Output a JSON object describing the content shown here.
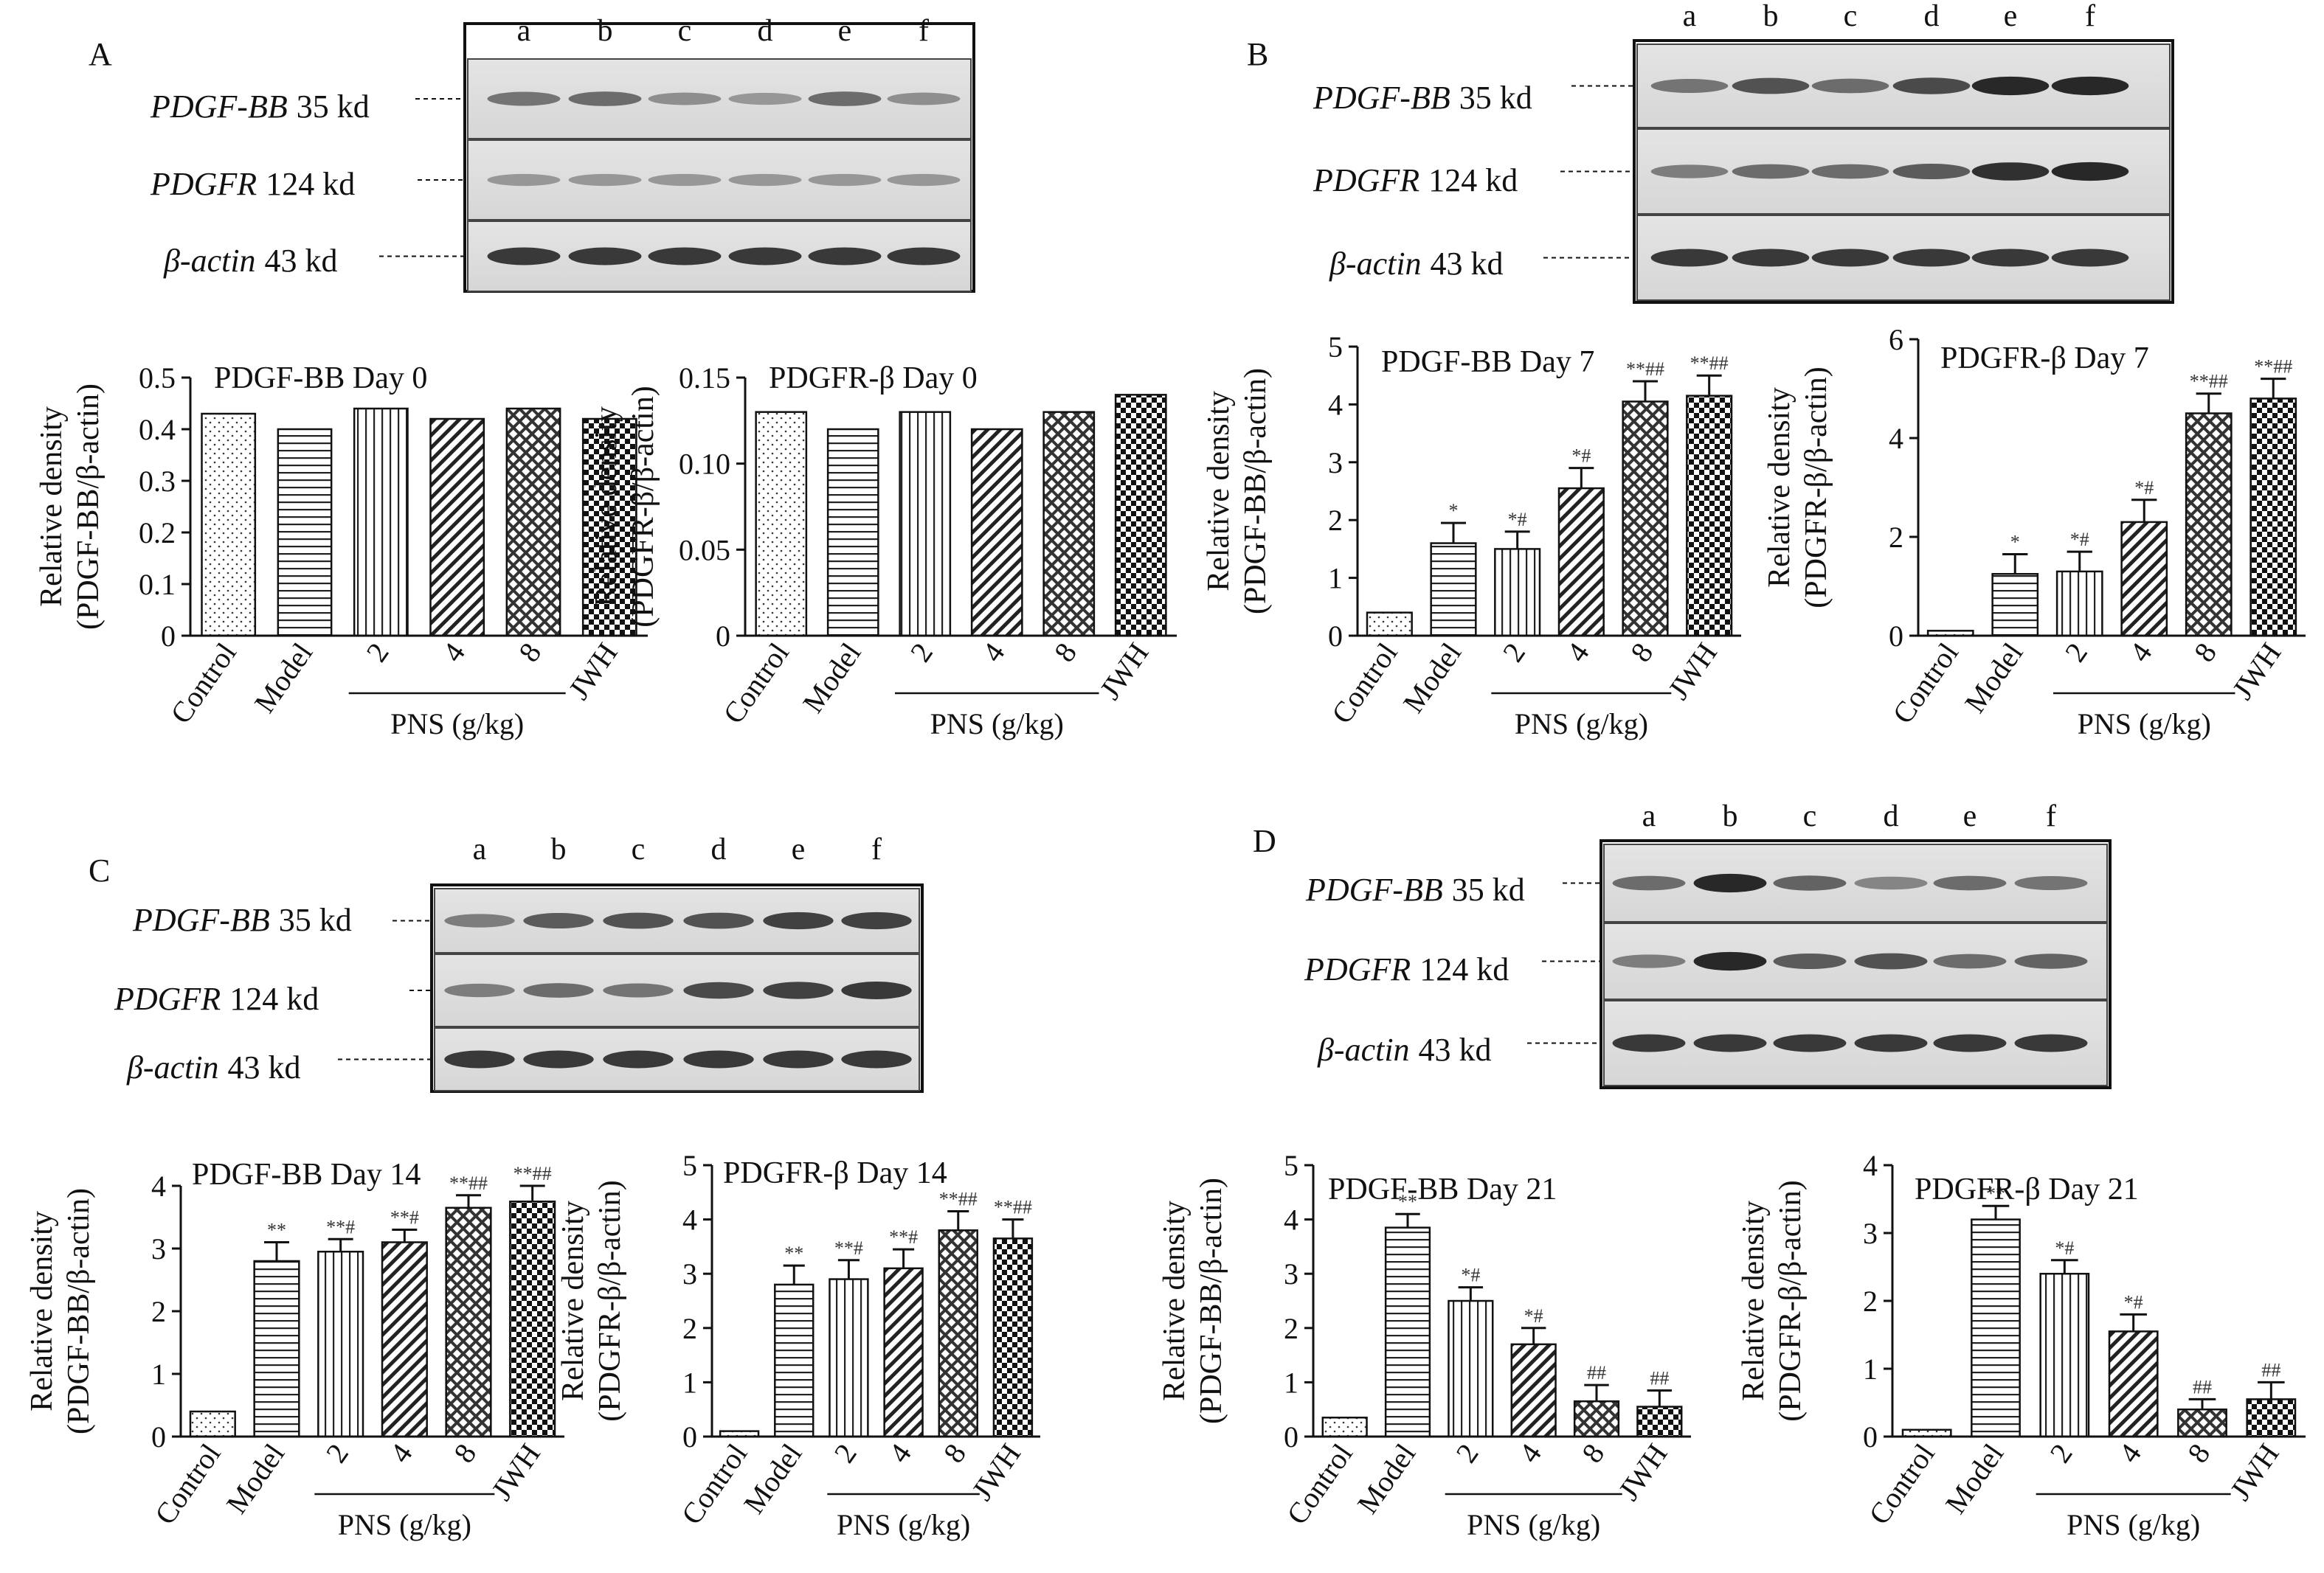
{
  "panels": [
    {
      "letter": "A",
      "lanes": [
        "a",
        "b",
        "c",
        "d",
        "e",
        "f"
      ],
      "blots": [
        {
          "name": "PDGF-BB",
          "size": "35 kd",
          "intensity": [
            0.5,
            0.55,
            0.35,
            0.3,
            0.55,
            0.35
          ]
        },
        {
          "name": "PDGFR",
          "size": "124 kd",
          "intensity": [
            0.3,
            0.3,
            0.3,
            0.3,
            0.3,
            0.3
          ]
        },
        {
          "name": "β-actin",
          "size": "43 kd",
          "intensity": [
            0.85,
            0.85,
            0.85,
            0.85,
            0.85,
            0.85
          ]
        }
      ]
    },
    {
      "letter": "B",
      "lanes": [
        "a",
        "b",
        "c",
        "d",
        "e",
        "f"
      ],
      "blots": [
        {
          "name": "PDGF-BB",
          "size": "35 kd",
          "intensity": [
            0.5,
            0.7,
            0.55,
            0.75,
            0.95,
            0.95
          ]
        },
        {
          "name": "PDGFR",
          "size": "124 kd",
          "intensity": [
            0.45,
            0.55,
            0.55,
            0.65,
            0.9,
            0.95
          ]
        },
        {
          "name": "β-actin",
          "size": "43 kd",
          "intensity": [
            0.85,
            0.85,
            0.85,
            0.85,
            0.85,
            0.85
          ]
        }
      ]
    },
    {
      "letter": "C",
      "lanes": [
        "a",
        "b",
        "c",
        "d",
        "e",
        "f"
      ],
      "blots": [
        {
          "name": "PDGF-BB",
          "size": "35 kd",
          "intensity": [
            0.45,
            0.65,
            0.7,
            0.7,
            0.8,
            0.8
          ]
        },
        {
          "name": "PDGFR",
          "size": "124 kd",
          "intensity": [
            0.45,
            0.55,
            0.5,
            0.75,
            0.8,
            0.85
          ]
        },
        {
          "name": "β-actin",
          "size": "43 kd",
          "intensity": [
            0.85,
            0.85,
            0.85,
            0.85,
            0.85,
            0.85
          ]
        }
      ]
    },
    {
      "letter": "D",
      "lanes": [
        "a",
        "b",
        "c",
        "d",
        "e",
        "f"
      ],
      "blots": [
        {
          "name": "PDGF-BB",
          "size": "35 kd",
          "intensity": [
            0.55,
            0.95,
            0.6,
            0.4,
            0.55,
            0.5
          ]
        },
        {
          "name": "PDGFR",
          "size": "124 kd",
          "intensity": [
            0.45,
            0.95,
            0.65,
            0.7,
            0.55,
            0.6
          ]
        },
        {
          "name": "β-actin",
          "size": "43 kd",
          "intensity": [
            0.85,
            0.85,
            0.85,
            0.85,
            0.85,
            0.85
          ]
        }
      ]
    }
  ],
  "chart_data": [
    {
      "type": "bar",
      "title": "PDGF-BB Day 0",
      "ylabel": [
        "Relative density",
        "(PDGF-BB/β-actin)"
      ],
      "categories": [
        "Control",
        "Model",
        "2",
        "4",
        "8",
        "JWH"
      ],
      "group_label": "PNS (g/kg)",
      "values": [
        0.43,
        0.4,
        0.44,
        0.42,
        0.44,
        0.42
      ],
      "errors": [
        0,
        0,
        0,
        0,
        0,
        0
      ],
      "sig": [
        "",
        "",
        "",
        "",
        "",
        ""
      ],
      "ylim": [
        0,
        0.5
      ],
      "yticks": [
        0,
        0.1,
        0.2,
        0.3,
        0.4,
        0.5
      ],
      "yticklabels": [
        "0",
        "0.1",
        "0.2",
        "0.3",
        "0.4",
        "0.5"
      ]
    },
    {
      "type": "bar",
      "title": "PDGFR-β Day 0",
      "ylabel": [
        "Relative density",
        "(PDGFR-β/β-actin)"
      ],
      "categories": [
        "Control",
        "Model",
        "2",
        "4",
        "8",
        "JWH"
      ],
      "group_label": "PNS (g/kg)",
      "values": [
        0.13,
        0.12,
        0.13,
        0.12,
        0.13,
        0.14
      ],
      "errors": [
        0,
        0,
        0,
        0,
        0,
        0
      ],
      "sig": [
        "",
        "",
        "",
        "",
        "",
        ""
      ],
      "ylim": [
        0,
        0.15
      ],
      "yticks": [
        0,
        0.05,
        0.1,
        0.15
      ],
      "yticklabels": [
        "0",
        "0.05",
        "0.10",
        "0.15"
      ]
    },
    {
      "type": "bar",
      "title": "PDGF-BB Day 7",
      "ylabel": [
        "Relative density",
        "(PDGF-BB/β-actin)"
      ],
      "categories": [
        "Control",
        "Model",
        "2",
        "4",
        "8",
        "JWH"
      ],
      "group_label": "PNS (g/kg)",
      "values": [
        0.4,
        1.6,
        1.5,
        2.55,
        4.05,
        4.15
      ],
      "errors": [
        0,
        0.35,
        0.3,
        0.35,
        0.35,
        0.35
      ],
      "sig": [
        "",
        "*",
        "*#",
        "*#",
        "**##",
        "**##"
      ],
      "ylim": [
        0,
        5
      ],
      "yticks": [
        0,
        1,
        2,
        3,
        4,
        5
      ],
      "yticklabels": [
        "0",
        "1",
        "2",
        "3",
        "4",
        "5"
      ]
    },
    {
      "type": "bar",
      "title": "PDGFR-β Day 7",
      "ylabel": [
        "Relative density",
        "(PDGFR-β/β-actin)"
      ],
      "categories": [
        "Control",
        "Model",
        "2",
        "4",
        "8",
        "JWH"
      ],
      "group_label": "PNS (g/kg)",
      "values": [
        0.1,
        1.25,
        1.3,
        2.3,
        4.5,
        4.8
      ],
      "errors": [
        0,
        0.4,
        0.4,
        0.45,
        0.4,
        0.4
      ],
      "sig": [
        "",
        "*",
        "*#",
        "*#",
        "**##",
        "**##"
      ],
      "ylim": [
        0,
        6
      ],
      "yticks": [
        0,
        2,
        4,
        6
      ],
      "yticklabels": [
        "0",
        "2",
        "4",
        "6"
      ]
    },
    {
      "type": "bar",
      "title": "PDGF-BB Day 14",
      "ylabel": [
        "Relative density",
        "(PDGF-BB/β-actin)"
      ],
      "categories": [
        "Control",
        "Model",
        "2",
        "4",
        "8",
        "JWH"
      ],
      "group_label": "PNS (g/kg)",
      "values": [
        0.4,
        2.8,
        2.95,
        3.1,
        3.65,
        3.75
      ],
      "errors": [
        0,
        0.3,
        0.2,
        0.2,
        0.2,
        0.25
      ],
      "sig": [
        "",
        "**",
        "**#",
        "**#",
        "**##",
        "**##"
      ],
      "ylim": [
        0,
        4
      ],
      "yticks": [
        0,
        1,
        2,
        3,
        4
      ],
      "yticklabels": [
        "0",
        "1",
        "2",
        "3",
        "4"
      ]
    },
    {
      "type": "bar",
      "title": "PDGFR-β Day 14",
      "ylabel": [
        "Relative density",
        "(PDGFR-β/β-actin)"
      ],
      "categories": [
        "Control",
        "Model",
        "2",
        "4",
        "8",
        "JWH"
      ],
      "group_label": "PNS (g/kg)",
      "values": [
        0.1,
        2.8,
        2.9,
        3.1,
        3.8,
        3.65
      ],
      "errors": [
        0,
        0.35,
        0.35,
        0.35,
        0.35,
        0.35
      ],
      "sig": [
        "",
        "**",
        "**#",
        "**#",
        "**##",
        "**##"
      ],
      "ylim": [
        0,
        5
      ],
      "yticks": [
        0,
        1,
        2,
        3,
        4,
        5
      ],
      "yticklabels": [
        "0",
        "1",
        "2",
        "3",
        "4",
        "5"
      ]
    },
    {
      "type": "bar",
      "title": "PDGF-BB Day 21",
      "ylabel": [
        "Relative density",
        "(PDGF-BB/β-actin)"
      ],
      "categories": [
        "Control",
        "Model",
        "2",
        "4",
        "8",
        "JWH"
      ],
      "group_label": "PNS (g/kg)",
      "values": [
        0.35,
        3.85,
        2.5,
        1.7,
        0.65,
        0.55
      ],
      "errors": [
        0,
        0.25,
        0.25,
        0.3,
        0.3,
        0.3
      ],
      "sig": [
        "",
        "**",
        "*#",
        "*#",
        "##",
        "##"
      ],
      "ylim": [
        0,
        5
      ],
      "yticks": [
        0,
        1,
        2,
        3,
        4,
        5
      ],
      "yticklabels": [
        "0",
        "1",
        "2",
        "3",
        "4",
        "5"
      ]
    },
    {
      "type": "bar",
      "title": "PDGFR-β Day 21",
      "ylabel": [
        "Relative density",
        "(PDGFR-β/β-actin)"
      ],
      "categories": [
        "Control",
        "Model",
        "2",
        "4",
        "8",
        "JWH"
      ],
      "group_label": "PNS (g/kg)",
      "values": [
        0.1,
        3.2,
        2.4,
        1.55,
        0.4,
        0.55
      ],
      "errors": [
        0,
        0.2,
        0.2,
        0.25,
        0.15,
        0.25
      ],
      "sig": [
        "",
        "**",
        "*#",
        "*#",
        "##",
        "##"
      ],
      "ylim": [
        0,
        4
      ],
      "yticks": [
        0,
        1,
        2,
        3,
        4
      ],
      "yticklabels": [
        "0",
        "1",
        "2",
        "3",
        "4"
      ]
    }
  ]
}
